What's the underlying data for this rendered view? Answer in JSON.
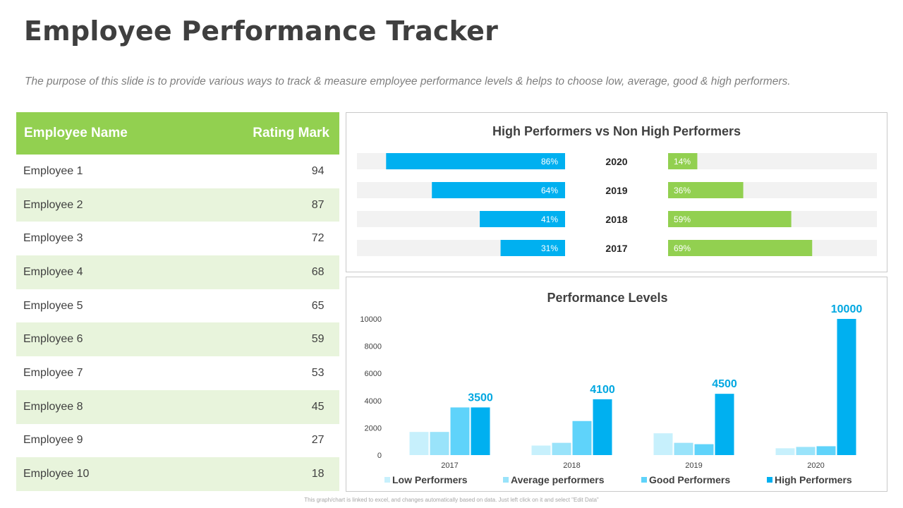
{
  "page": {
    "title": "Employee Performance Tracker",
    "subtitle": "The purpose of this slide is to provide various ways to track & measure employee performance levels & helps to choose low,  average, good & high performers.",
    "footnote": "This graph/chart is linked to excel, and changes automatically based on data. Just left click on it and select \"Edit Data\""
  },
  "employee_table": {
    "headers": {
      "name": "Employee Name",
      "rating": "Rating Mark"
    },
    "rows": [
      {
        "name": "Employee 1",
        "rating": "94"
      },
      {
        "name": "Employee 2",
        "rating": "87"
      },
      {
        "name": "Employee 3",
        "rating": "72"
      },
      {
        "name": "Employee 4",
        "rating": "68"
      },
      {
        "name": "Employee 5",
        "rating": "65"
      },
      {
        "name": "Employee 6",
        "rating": "59"
      },
      {
        "name": "Employee 7",
        "rating": "53"
      },
      {
        "name": "Employee 8",
        "rating": "45"
      },
      {
        "name": "Employee 9",
        "rating": "27"
      },
      {
        "name": "Employee 10",
        "rating": "18"
      }
    ]
  },
  "chart_data": [
    {
      "type": "table",
      "columns": [
        "Employee Name",
        "Rating Mark"
      ],
      "rows": [
        [
          "Employee 1",
          94
        ],
        [
          "Employee 2",
          87
        ],
        [
          "Employee 3",
          72
        ],
        [
          "Employee 4",
          68
        ],
        [
          "Employee 5",
          65
        ],
        [
          "Employee 6",
          59
        ],
        [
          "Employee 7",
          53
        ],
        [
          "Employee 8",
          45
        ],
        [
          "Employee 9",
          27
        ],
        [
          "Employee 10",
          18
        ]
      ]
    },
    {
      "type": "bar",
      "orientation": "horizontal-diverging",
      "title": "High Performers vs Non High Performers",
      "categories": [
        "2020",
        "2019",
        "2018",
        "2017"
      ],
      "series": [
        {
          "values": [
            86,
            64,
            41,
            31
          ],
          "labels": [
            "86%",
            "64%",
            "41%",
            "31%"
          ],
          "color": "#00b0f0"
        },
        {
          "values": [
            14,
            36,
            59,
            69
          ],
          "labels": [
            "14%",
            "36%",
            "59%",
            "69%"
          ],
          "color": "#92d050"
        }
      ],
      "xlim": [
        0,
        100
      ],
      "track_color": "#f2f2f2",
      "legend": "none",
      "grid": false
    },
    {
      "type": "bar",
      "title": "Performance Levels",
      "categories": [
        "2017",
        "2018",
        "2019",
        "2020"
      ],
      "series": [
        {
          "name": "Low Performers",
          "values": [
            1700,
            700,
            1600,
            500
          ],
          "color": "#c7f0fc"
        },
        {
          "name": "Average performers",
          "values": [
            1700,
            900,
            900,
            600
          ],
          "color": "#99e3fa"
        },
        {
          "name": "Good Performers",
          "values": [
            3500,
            2500,
            800,
            650
          ],
          "color": "#5fd3fa"
        },
        {
          "name": "High Performers",
          "values": [
            3500,
            4100,
            4500,
            10000
          ],
          "color": "#00b0f0"
        }
      ],
      "data_labels": [
        "3500",
        "4100",
        "4500",
        "10000"
      ],
      "data_label_color": "#00a7e1",
      "yticks": [
        "0",
        "2000",
        "4000",
        "6000",
        "8000",
        "10000"
      ],
      "ylim": [
        0,
        10000
      ],
      "legend": "bottom",
      "grid": false
    }
  ]
}
